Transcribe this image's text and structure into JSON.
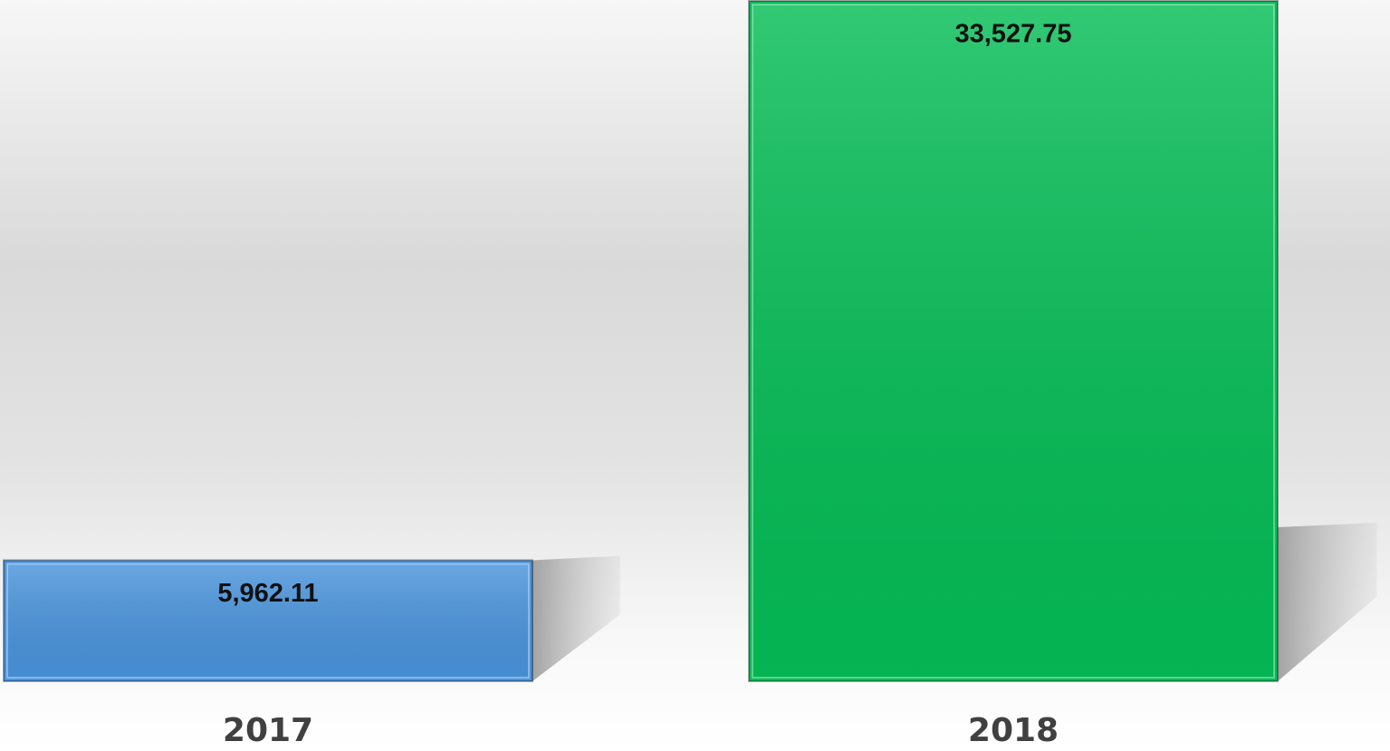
{
  "chart_data": {
    "type": "bar",
    "categories": [
      "2017",
      "2018"
    ],
    "values": [
      5962.11,
      33527.75
    ],
    "value_labels": [
      "5,962.11",
      "33,527.75"
    ],
    "colors": [
      "#4a94dc",
      "#05bd56"
    ]
  }
}
